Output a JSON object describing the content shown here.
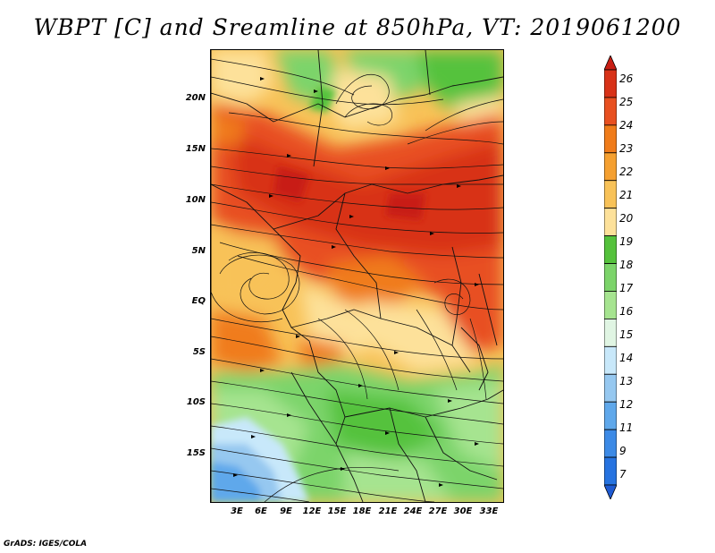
{
  "title": "WBPT [C] and Sreamline at 850hPa, VT: 2019061200",
  "map": {
    "lat_labels": [
      "20N",
      "15N",
      "10N",
      "5N",
      "EQ",
      "5S",
      "10S",
      "15S"
    ],
    "lon_labels": [
      "3E",
      "6E",
      "9E",
      "12E",
      "15E",
      "18E",
      "21E",
      "24E",
      "27E",
      "30E",
      "33E"
    ]
  },
  "colorbar": {
    "levels": [
      "26",
      "25",
      "24",
      "23",
      "22",
      "21",
      "20",
      "19",
      "18",
      "17",
      "16",
      "15",
      "14",
      "13",
      "12",
      "11",
      "9",
      "7"
    ],
    "colors": [
      "#c81e14",
      "#d83218",
      "#e85020",
      "#f07c1a",
      "#f5a030",
      "#f8c258",
      "#fde19a",
      "#55c23c",
      "#7cd46a",
      "#a6e490",
      "#e0f5e3",
      "#c8e8fa",
      "#96c8f0",
      "#5fa8eb",
      "#3c8ae6",
      "#2673e0",
      "#1e5ad2"
    ]
  },
  "footer": "GrADS: IGES/COLA"
}
